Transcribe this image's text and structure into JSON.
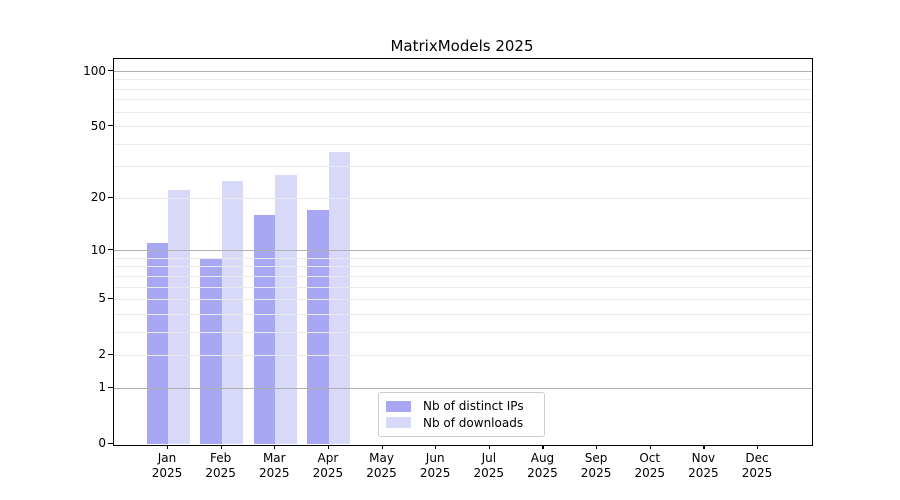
{
  "chart_data": {
    "type": "bar",
    "title": "MatrixModels 2025",
    "categories": [
      "Jan",
      "Feb",
      "Mar",
      "Apr",
      "May",
      "Jun",
      "Jul",
      "Aug",
      "Sep",
      "Oct",
      "Nov",
      "Dec"
    ],
    "category_sublabel": "2025",
    "series": [
      {
        "name": "Nb of distinct IPs",
        "color": "#a7a7f4",
        "values": [
          11,
          9,
          16,
          17,
          0,
          0,
          0,
          0,
          0,
          0,
          0,
          0
        ]
      },
      {
        "name": "Nb of downloads",
        "color": "#d8d8f8",
        "values": [
          22,
          25,
          27,
          36,
          0,
          0,
          0,
          0,
          0,
          0,
          0,
          0
        ]
      }
    ],
    "yscale": "log1p",
    "ylim": [
      0,
      100
    ],
    "yticks_labeled": [
      0,
      1,
      2,
      5,
      10,
      20,
      50,
      100
    ],
    "gridlines_major": [
      1,
      10,
      100
    ],
    "gridlines_minor": [
      2,
      3,
      4,
      5,
      6,
      7,
      8,
      9,
      20,
      30,
      40,
      50,
      60,
      70,
      80,
      90
    ],
    "legend_position": "lower center",
    "colors": {
      "grid_major": "#b0b0b0",
      "grid_minor": "#e9e9e9",
      "axis": "#000000",
      "text": "#000000",
      "background": "#ffffff"
    }
  }
}
